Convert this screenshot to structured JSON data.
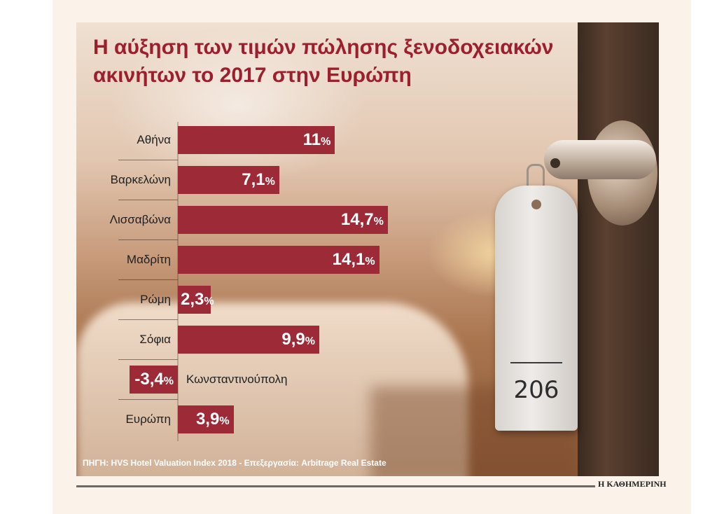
{
  "chart_data": {
    "type": "bar",
    "orientation": "horizontal",
    "title": "Η αύξηση των τιμών πώλησης ξενοδοχειακών ακινήτων το 2017 στην Ευρώπη",
    "categories": [
      "Αθήνα",
      "Βαρκελώνη",
      "Λισσαβώνα",
      "Μαδρίτη",
      "Ρώμη",
      "Σόφια",
      "Κωνσταντινούπολη",
      "Ευρώπη"
    ],
    "values": [
      11,
      7.1,
      14.7,
      14.1,
      2.3,
      9.9,
      -3.4,
      3.9
    ],
    "value_labels": [
      "11",
      "7,1",
      "14,7",
      "14,1",
      "2,3",
      "9,9",
      "-3,4",
      "3,9"
    ],
    "unit": "%",
    "bar_color": "#9d2a37",
    "xlim": [
      -4,
      16
    ],
    "source": "ΠΗΓΗ: HVS Hotel Valuation Index 2018 - Επεξεργασία: Arbitrage Real Estate"
  },
  "background": {
    "room_tag_number": "206"
  },
  "footer": {
    "brand": "Η ΚΑΘΗΜΕΡΙΝΗ"
  }
}
